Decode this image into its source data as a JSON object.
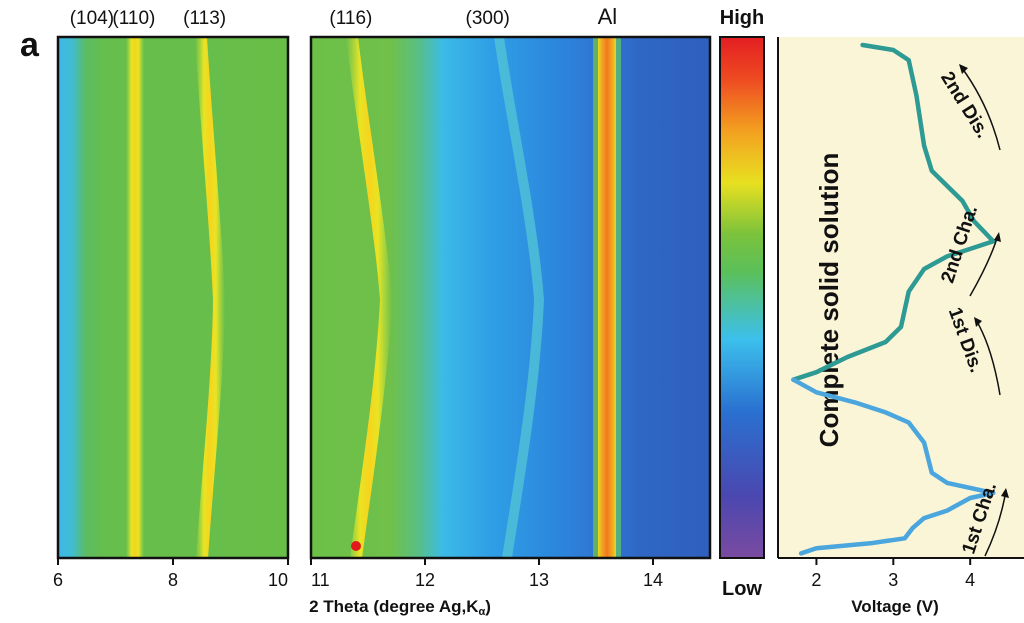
{
  "panel_label": "a",
  "chart_data": [
    {
      "type": "heatmap",
      "name": "contour-left",
      "xlim": [
        6,
        10
      ],
      "xticks": [
        6,
        8,
        10
      ],
      "peaks": [
        {
          "label": "(104)",
          "x": 6.45
        },
        {
          "label": "(110)",
          "x": 7.32
        },
        {
          "label": "(113)",
          "x": 8.55
        }
      ]
    },
    {
      "type": "heatmap",
      "name": "contour-right",
      "xlim": [
        11,
        14.5
      ],
      "xticks": [
        11,
        12,
        13,
        14
      ],
      "xlabel": "2 Theta (degree Ag,K",
      "xlabel_sub": "α",
      "xlabel_close": ")",
      "peaks": [
        {
          "label": "(116)",
          "x": 11.35
        },
        {
          "label": "(300)",
          "x": 12.55
        },
        {
          "label": "Al",
          "x": 13.6
        }
      ]
    },
    {
      "type": "colorbar",
      "top_label": "High",
      "bottom_label": "Low"
    },
    {
      "type": "line",
      "name": "voltage-profile",
      "xlabel": "Voltage (V)",
      "xlim": [
        1.5,
        4.7
      ],
      "xticks": [
        2,
        3,
        4
      ],
      "annotation": "Complete solid solution",
      "segments": [
        {
          "label": "1st Cha.",
          "color": "#2e9a94"
        },
        {
          "label": "1st Dis.",
          "color": "#2e9a94"
        },
        {
          "label": "2nd Cha.",
          "color": "#4aa6dd"
        },
        {
          "label": "2nd Dis.",
          "color": "#4aa6dd"
        }
      ],
      "series": [
        {
          "values": [
            [
              2.6,
              1.0
            ],
            [
              3.0,
              0.99
            ],
            [
              3.2,
              0.97
            ],
            [
              3.3,
              0.9
            ],
            [
              3.4,
              0.8
            ],
            [
              3.5,
              0.75
            ],
            [
              3.7,
              0.72
            ],
            [
              3.9,
              0.69
            ],
            [
              4.05,
              0.65
            ],
            [
              4.3,
              0.61
            ],
            [
              4.0,
              0.595
            ],
            [
              3.7,
              0.58
            ],
            [
              3.4,
              0.555
            ],
            [
              3.2,
              0.51
            ],
            [
              3.1,
              0.44
            ],
            [
              2.9,
              0.41
            ],
            [
              2.4,
              0.38
            ],
            [
              2.0,
              0.35
            ],
            [
              1.7,
              0.335
            ]
          ]
        },
        {
          "values": [
            [
              1.7,
              0.335
            ],
            [
              2.0,
              0.31
            ],
            [
              2.5,
              0.29
            ],
            [
              2.9,
              0.27
            ],
            [
              3.2,
              0.25
            ],
            [
              3.4,
              0.21
            ],
            [
              3.5,
              0.15
            ],
            [
              3.7,
              0.13
            ],
            [
              4.0,
              0.12
            ],
            [
              4.3,
              0.11
            ],
            [
              4.0,
              0.1
            ],
            [
              3.7,
              0.075
            ],
            [
              3.4,
              0.06
            ],
            [
              3.25,
              0.04
            ],
            [
              3.15,
              0.02
            ],
            [
              2.7,
              0.01
            ],
            [
              2.0,
              0.0
            ],
            [
              1.8,
              -0.01
            ]
          ]
        }
      ]
    }
  ]
}
